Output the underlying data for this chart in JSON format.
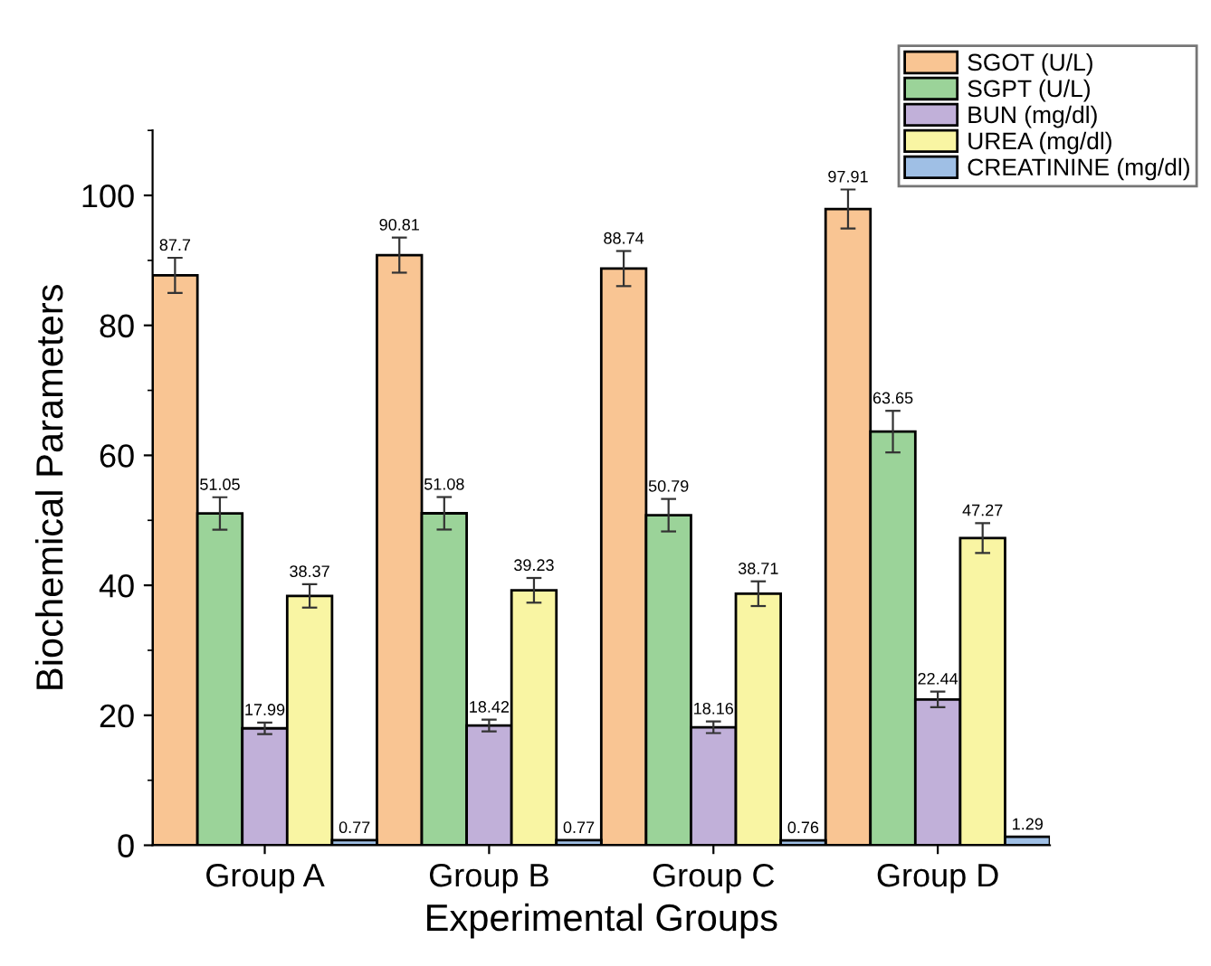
{
  "chart_data": {
    "type": "bar",
    "xlabel": "Experimental Groups",
    "ylabel": "Biochemical Parameters",
    "categories": [
      "Group A",
      "Group B",
      "Group C",
      "Group D"
    ],
    "series": [
      {
        "name": "SGOT (U/L)",
        "color": "#f9c593",
        "values": [
          87.7,
          90.81,
          88.74,
          97.91
        ],
        "errors": [
          2.7,
          2.7,
          2.7,
          3.0
        ]
      },
      {
        "name": "SGPT (U/L)",
        "color": "#9bd399",
        "values": [
          51.05,
          51.08,
          50.79,
          63.65
        ],
        "errors": [
          2.5,
          2.5,
          2.5,
          3.2
        ]
      },
      {
        "name": "BUN (mg/dl)",
        "color": "#c1b0d9",
        "values": [
          17.99,
          18.42,
          18.16,
          22.44
        ],
        "errors": [
          0.9,
          0.9,
          0.9,
          1.2
        ]
      },
      {
        "name": "UREA (mg/dl)",
        "color": "#f9f5a3",
        "values": [
          38.37,
          39.23,
          38.71,
          47.27
        ],
        "errors": [
          1.8,
          1.9,
          1.9,
          2.3
        ]
      },
      {
        "name": "CREATININE (mg/dl)",
        "color": "#9fbfe5",
        "values": [
          0.77,
          0.77,
          0.76,
          1.29
        ]
      }
    ],
    "ylim": [
      0,
      110
    ],
    "yticks": [
      0,
      20,
      40,
      60,
      80,
      100
    ],
    "data_labels": true,
    "legend": "top right",
    "grid": false
  }
}
